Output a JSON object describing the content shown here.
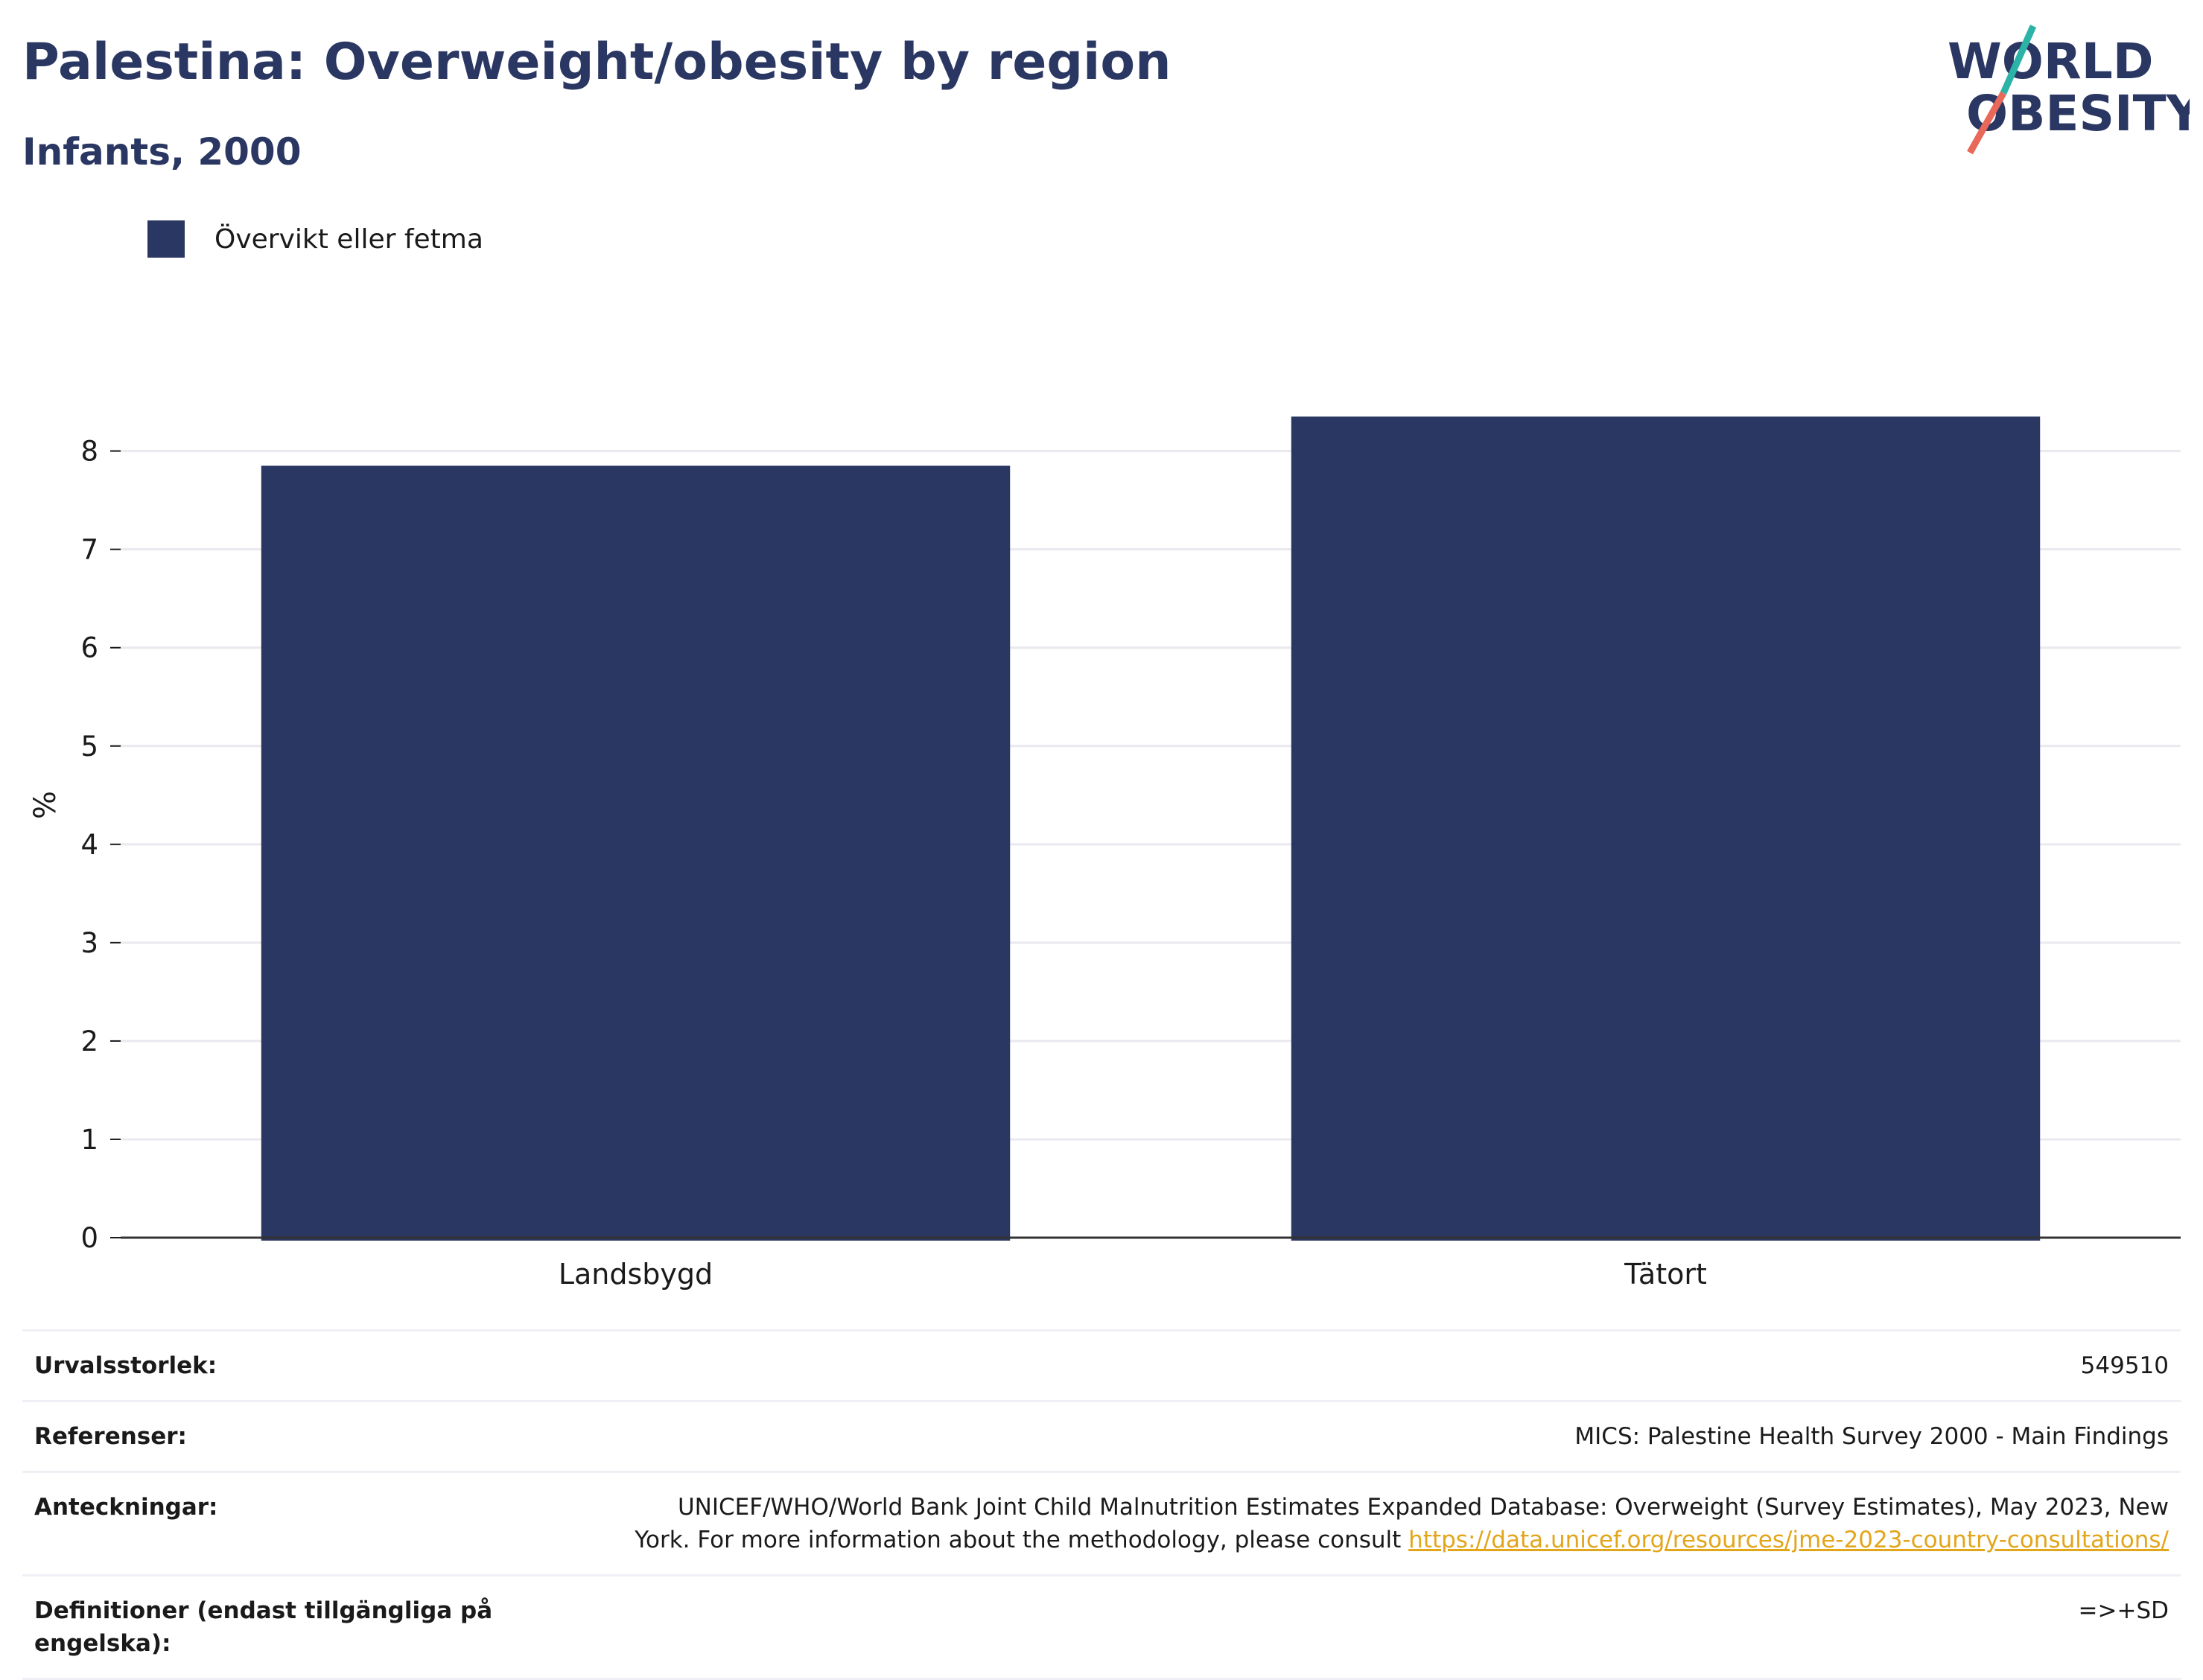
{
  "header": {
    "title": "Palestina: Overweight/obesity by region",
    "subtitle": "Infants, 2000"
  },
  "logo": {
    "line1": "WORLD",
    "line2": "OBESITY",
    "colors": {
      "text": "#2b3763",
      "accent_teal": "#2bb3a8",
      "accent_red": "#e8685a"
    }
  },
  "colors": {
    "bar": "#2b3763",
    "grid": "#e8eaef",
    "title": "#2b3763",
    "link": "#e3a51a"
  },
  "chart_data": {
    "type": "bar",
    "categories": [
      "Landsbygd",
      "Tätort"
    ],
    "series": [
      {
        "name": "Övervikt eller fetma",
        "values": [
          7.85,
          8.35
        ]
      }
    ],
    "ylabel": "%",
    "xlabel": "",
    "ylim": [
      0,
      8.8
    ],
    "yticks": [
      0,
      1,
      2,
      3,
      4,
      5,
      6,
      7,
      8
    ],
    "grid": true,
    "legend": "top-left"
  },
  "info_table": {
    "sample_size": {
      "label": "Urvalsstorlek:",
      "value": "549510"
    },
    "references": {
      "label": "Referenser:",
      "value": "MICS: Palestine Health Survey 2000 - Main Findings"
    },
    "notes": {
      "label": "Anteckningar:",
      "value_line1": "UNICEF/WHO/World Bank Joint Child Malnutrition Estimates Expanded Database: Overweight (Survey Estimates), May 2023, New",
      "value_line2": "York. For more information about the methodology, please consult",
      "link": "https://data.unicef.org/resources/jme-2023-country-consultations/"
    },
    "definitions": {
      "label": "Definitioner (endast tillgängliga på engelska):",
      "value": "=>+SD"
    }
  }
}
